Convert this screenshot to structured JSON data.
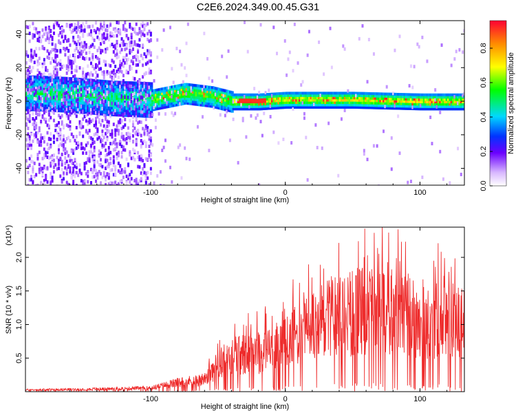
{
  "title": "C2E6.2024.349.00.45.G31",
  "chart_data": [
    {
      "type": "heatmap",
      "xlabel": "Height of straight line (km)",
      "ylabel": "Frequency (Hz)",
      "xlim": [
        -193,
        133
      ],
      "ylim": [
        -50,
        48
      ],
      "x_ticks": [
        -100,
        0,
        100
      ],
      "y_ticks": [
        -40,
        -20,
        0,
        20,
        40
      ],
      "colorbar": {
        "label": "Normalized spectral amplitude",
        "range": [
          0.0,
          0.96
        ],
        "ticks": [
          "0.0",
          "0.2",
          "0.4",
          "0.6",
          "0.8"
        ]
      },
      "ridge": {
        "description_points": [
          {
            "x": -185,
            "y": 5
          },
          {
            "x": -160,
            "y": 4
          },
          {
            "x": -130,
            "y": 2
          },
          {
            "x": -100,
            "y": 1
          },
          {
            "x": -75,
            "y": 5
          },
          {
            "x": -55,
            "y": 3
          },
          {
            "x": -40,
            "y": 0
          },
          {
            "x": -20,
            "y": 0
          },
          {
            "x": 0,
            "y": 1
          },
          {
            "x": 50,
            "y": 1
          },
          {
            "x": 100,
            "y": 0
          },
          {
            "x": 133,
            "y": 0
          }
        ]
      }
    },
    {
      "type": "line",
      "xlabel": "Height of straight line (km)",
      "ylabel": "SNR (10 * v/v)",
      "y_multiplier": "(x10⁴)",
      "xlim": [
        -193,
        133
      ],
      "ylim": [
        0.0,
        2.45
      ],
      "x_ticks": [
        -100,
        0,
        100
      ],
      "y_ticks": [
        "0.5",
        "1.0",
        "1.5",
        "2.0"
      ],
      "series": [
        {
          "color": "#ee2b2b",
          "envelope": [
            {
              "x": -193,
              "y": 0.03
            },
            {
              "x": -150,
              "y": 0.04
            },
            {
              "x": -100,
              "y": 0.06
            },
            {
              "x": -80,
              "y": 0.15
            },
            {
              "x": -60,
              "y": 0.2
            },
            {
              "x": -50,
              "y": 0.45
            },
            {
              "x": -40,
              "y": 0.6
            },
            {
              "x": -20,
              "y": 0.65
            },
            {
              "x": 0,
              "y": 0.8
            },
            {
              "x": 20,
              "y": 1.1
            },
            {
              "x": 40,
              "y": 1.25
            },
            {
              "x": 60,
              "y": 1.35
            },
            {
              "x": 80,
              "y": 1.3
            },
            {
              "x": 100,
              "y": 1.2
            },
            {
              "x": 133,
              "y": 1.15
            }
          ]
        }
      ]
    }
  ]
}
